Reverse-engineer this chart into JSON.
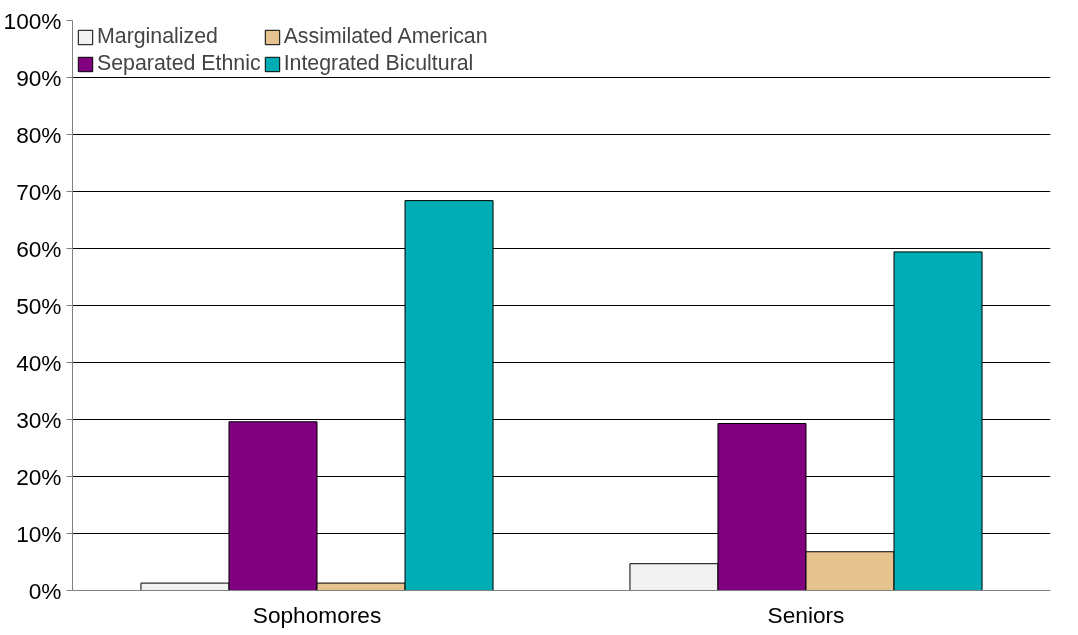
{
  "chart_data": {
    "type": "bar",
    "categories": [
      "Sophomores",
      "Seniors"
    ],
    "series": [
      {
        "name": "Marginalized",
        "color": "#f2f2f2",
        "values": [
          1.3,
          4.7
        ]
      },
      {
        "name": "Separated Ethnic",
        "color": "#800080",
        "values": [
          29.6,
          29.3
        ]
      },
      {
        "name": "Assimilated American",
        "color": "#e6c38e",
        "values": [
          1.3,
          6.8
        ]
      },
      {
        "name": "Integrated Bicultural",
        "color": "#00adb5",
        "values": [
          68.4,
          59.4
        ]
      }
    ],
    "ylim": [
      0,
      100
    ],
    "yticks": [
      {
        "value": 0,
        "label": "0%"
      },
      {
        "value": 10,
        "label": "10%"
      },
      {
        "value": 20,
        "label": "20%"
      },
      {
        "value": 30,
        "label": "30%"
      },
      {
        "value": 40,
        "label": "40%"
      },
      {
        "value": 50,
        "label": "50%"
      },
      {
        "value": 60,
        "label": "60%"
      },
      {
        "value": 70,
        "label": "70%"
      },
      {
        "value": 80,
        "label": "80%"
      },
      {
        "value": 90,
        "label": "90%"
      },
      {
        "value": 100,
        "label": "100%"
      }
    ],
    "grid": "y",
    "legend": "top left"
  }
}
